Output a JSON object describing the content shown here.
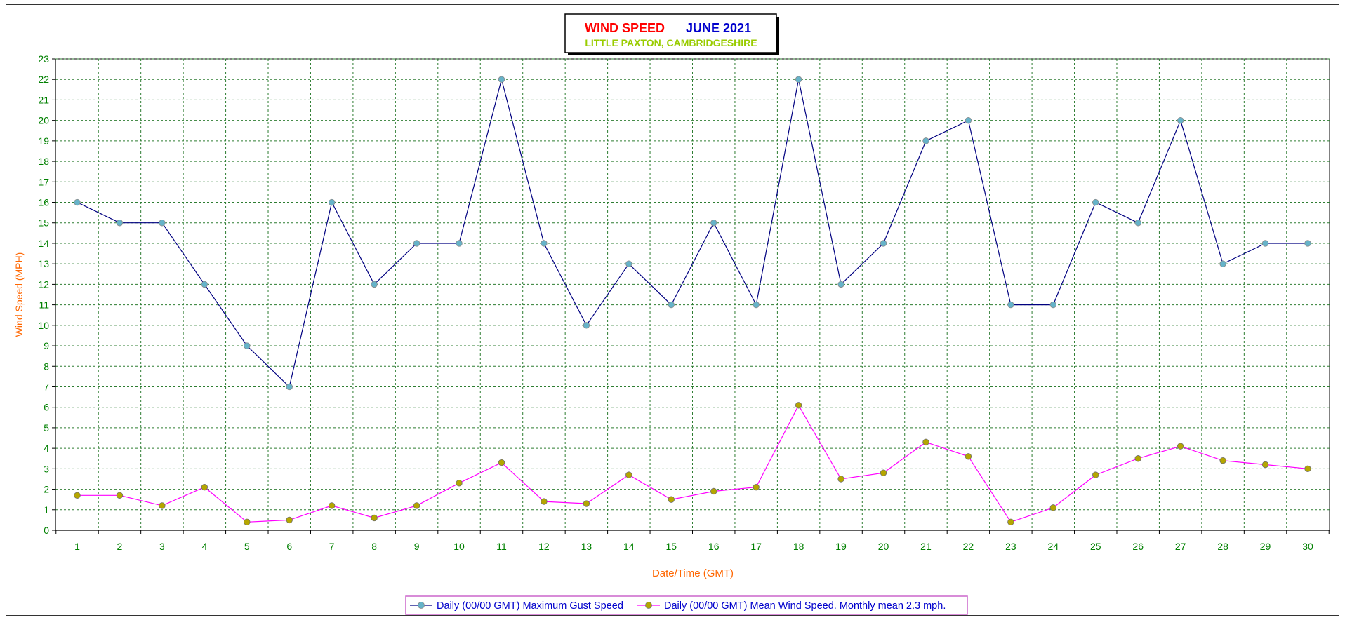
{
  "chart_data": {
    "type": "line",
    "title_part1": "WIND SPEED",
    "title_part2": "JUNE 2021",
    "subtitle": "LITTLE PAXTON, CAMBRIDGESHIRE",
    "xlabel": "Date/Time (GMT)",
    "ylabel": "Wind Speed (MPH)",
    "ylim": [
      0,
      23
    ],
    "xlim": [
      1,
      30
    ],
    "grid": true,
    "legend_position": "bottom-center",
    "colors": {
      "title_part1": "#ff0000",
      "title_part2": "#0000cc",
      "subtitle": "#99cc00",
      "axis_title": "#ff6600",
      "tick_label": "#008000",
      "grid": "#2e7d32",
      "gust_line": "#000080",
      "gust_marker": "#66b3c9",
      "mean_line": "#ff00ff",
      "mean_marker": "#b5a600",
      "legend_text": "#0000cc",
      "legend_border": "#cc66cc"
    },
    "x": [
      1,
      2,
      3,
      4,
      5,
      6,
      7,
      8,
      9,
      10,
      11,
      12,
      13,
      14,
      15,
      16,
      17,
      18,
      19,
      20,
      21,
      22,
      23,
      24,
      25,
      26,
      27,
      28,
      29,
      30
    ],
    "series": [
      {
        "name": "Daily (00/00 GMT) Maximum Gust Speed",
        "values": [
          16,
          15,
          15,
          12,
          9,
          7,
          16,
          12,
          14,
          14,
          22,
          14,
          10,
          13,
          11,
          15,
          11,
          22,
          12,
          14,
          19,
          20,
          11,
          11,
          16,
          15,
          20,
          13,
          14,
          14
        ]
      },
      {
        "name": "Daily (00/00 GMT) Mean Wind Speed. Monthly mean 2.3 mph.",
        "values": [
          1.7,
          1.7,
          1.2,
          2.1,
          0.4,
          0.5,
          1.2,
          0.6,
          1.2,
          2.3,
          3.3,
          1.4,
          1.3,
          2.7,
          1.5,
          1.9,
          2.1,
          6.1,
          2.5,
          2.8,
          4.3,
          3.6,
          0.4,
          1.1,
          2.7,
          3.5,
          4.1,
          3.4,
          3.2,
          3.0
        ]
      }
    ]
  }
}
